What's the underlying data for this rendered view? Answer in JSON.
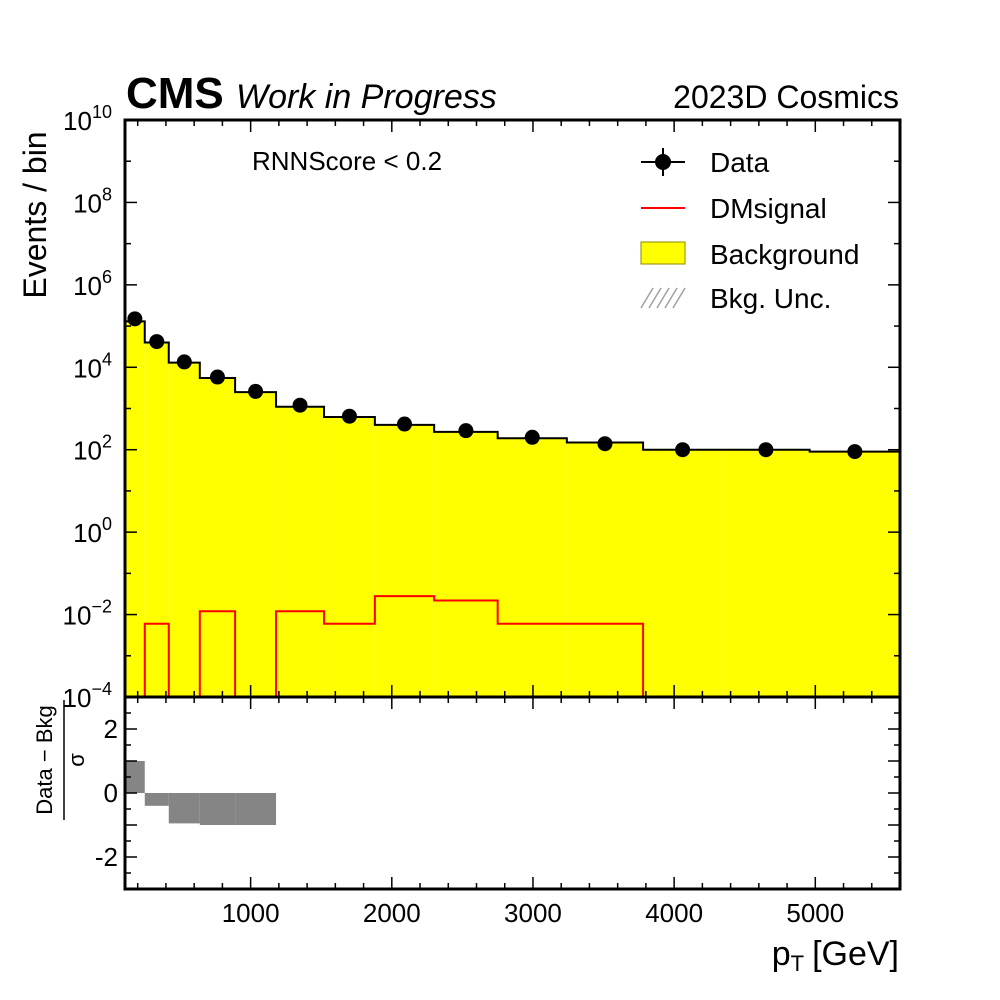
{
  "header": {
    "experiment": "CMS",
    "status": "Work in Progress",
    "dataset": "2023D Cosmics"
  },
  "annotation": "RNNScore < 0.2",
  "chart_data": [
    {
      "type": "bar",
      "panel": "main",
      "ylabel": "Events / bin",
      "yscale": "log",
      "ylim_exponents": [
        -4,
        10
      ],
      "yticks": [
        {
          "base": "10",
          "exp": "10"
        },
        {
          "base": "10",
          "exp": "8"
        },
        {
          "base": "10",
          "exp": "6"
        },
        {
          "base": "10",
          "exp": "4"
        },
        {
          "base": "10",
          "exp": "2"
        },
        {
          "base": "10",
          "exp": "0"
        },
        {
          "base": "10",
          "exp": "−2"
        },
        {
          "base": "10",
          "exp": "−4"
        }
      ],
      "xlim": [
        110,
        5600
      ],
      "bin_edges": [
        110,
        250,
        420,
        640,
        890,
        1180,
        1520,
        1880,
        2300,
        2750,
        3240,
        3780,
        4340,
        4960,
        5600
      ],
      "series": [
        {
          "name": "Background",
          "color": "#ffff00",
          "values": [
            130000,
            40000,
            13000,
            5500,
            2500,
            1100,
            620,
            400,
            270,
            190,
            150,
            100,
            100,
            90
          ]
        },
        {
          "name": "DMsignal",
          "color": "#ff0000",
          "values": [
            0,
            0.006,
            0,
            0.012,
            0,
            0.012,
            0.006,
            0.028,
            0.022,
            0.006,
            0.006,
            0,
            0,
            0
          ]
        },
        {
          "name": "Data",
          "color": "#000000",
          "x": [
            180,
            335,
            530,
            765,
            1035,
            1350,
            1700,
            2090,
            2525,
            2995,
            3510,
            4060,
            4650,
            5280
          ],
          "values": [
            150000,
            42000,
            13500,
            5800,
            2600,
            1200,
            650,
            420,
            290,
            200,
            140,
            100,
            100,
            90
          ]
        }
      ],
      "legend": {
        "placement": "top-right",
        "entries": [
          "Data",
          "DMsignal",
          "Background",
          "Bkg. Unc."
        ]
      }
    },
    {
      "type": "bar",
      "panel": "ratio",
      "ylabel_numerator": "Data − Bkg",
      "ylabel_denominator": "σ",
      "ylim": [
        -3,
        3
      ],
      "yticks": [
        "2",
        "0",
        "-2"
      ],
      "yticks_values": [
        2,
        0,
        -2
      ],
      "xlabel": "p",
      "xlabel_sub": "T",
      "xlabel_unit": "[GeV]",
      "xticks": [
        "1000",
        "2000",
        "3000",
        "4000",
        "5000"
      ],
      "xticks_values": [
        1000,
        2000,
        3000,
        4000,
        5000
      ],
      "bin_edges": [
        110,
        250,
        420,
        640,
        890,
        1180
      ],
      "values": [
        1.0,
        -0.4,
        -0.95,
        -1.0,
        -1.0
      ],
      "color": "#858585"
    }
  ]
}
